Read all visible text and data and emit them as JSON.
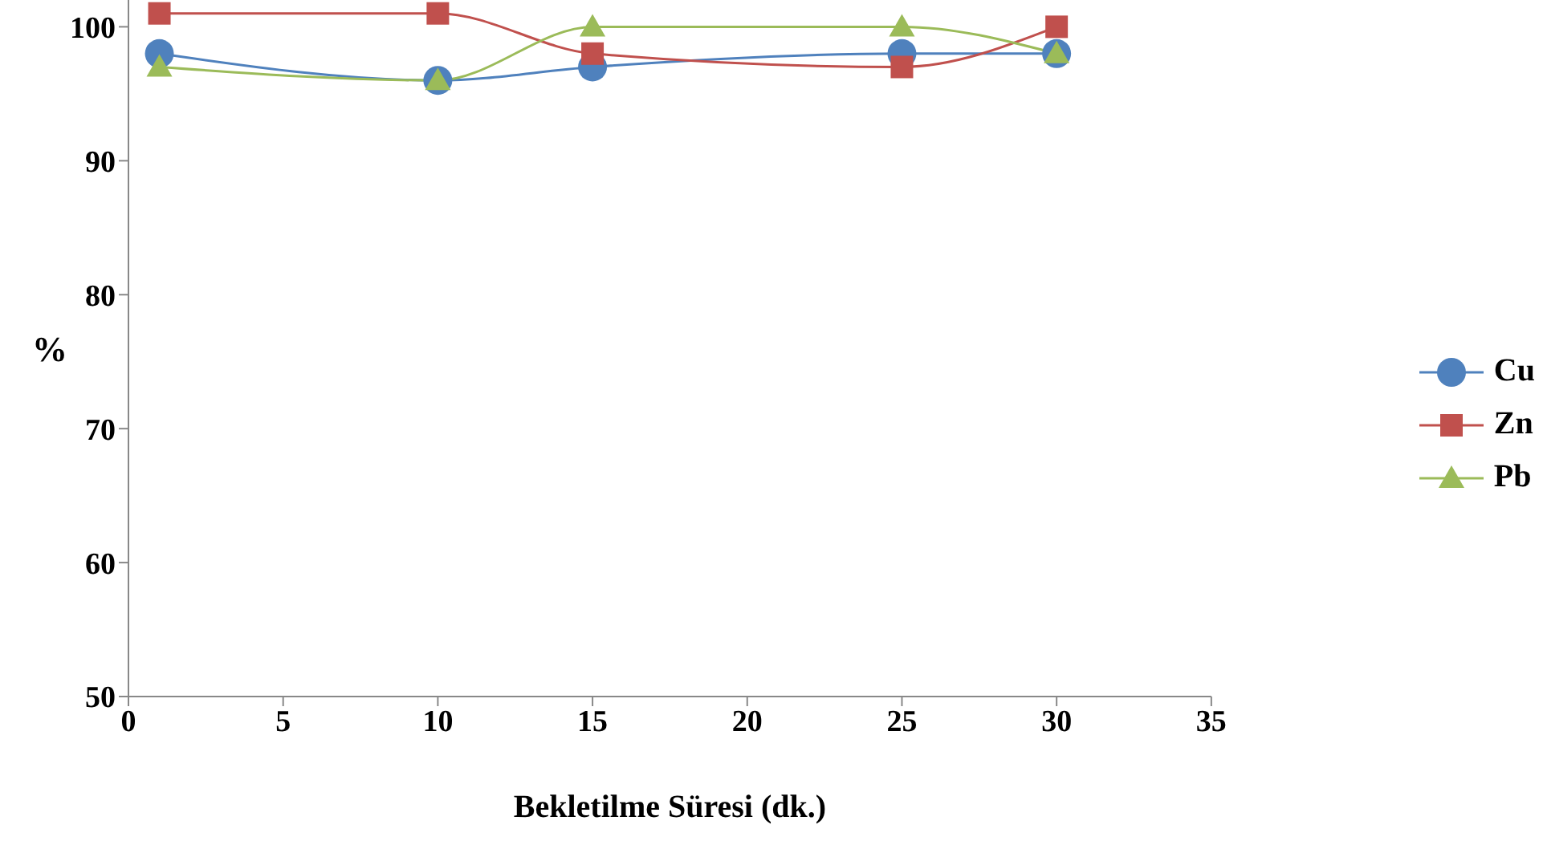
{
  "chart_data": {
    "type": "line",
    "xlabel": "Bekletilme Süresi (dk.)",
    "ylabel": "%",
    "x": [
      1,
      10,
      15,
      25,
      30
    ],
    "series": [
      {
        "name": "Cu",
        "color": "#4f81bd",
        "values": [
          98,
          96,
          97,
          98,
          98
        ],
        "marker": "circle"
      },
      {
        "name": "Zn",
        "color": "#c0504d",
        "values": [
          101,
          101,
          98,
          97,
          100
        ],
        "marker": "square"
      },
      {
        "name": "Pb",
        "color": "#9bbb59",
        "values": [
          97,
          96,
          100,
          100,
          98
        ],
        "marker": "triangle"
      }
    ],
    "xlim": [
      0,
      35
    ],
    "xticks": [
      0,
      5,
      10,
      15,
      20,
      25,
      30,
      35
    ],
    "ylim": [
      50,
      102
    ],
    "yticks": [
      50,
      60,
      70,
      80,
      90,
      100
    ],
    "legend": "right",
    "line_style": "solid"
  }
}
